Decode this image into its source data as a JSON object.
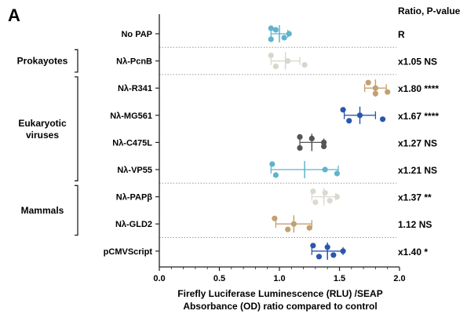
{
  "chart_data": {
    "type": "scatter",
    "panel_label": "A",
    "right_header": "Ratio, P-value",
    "xlabel_lines": [
      "Firefly Luciferase Luminescence (RLU) /SEAP",
      "Absorbance (OD) ratio compared to control"
    ],
    "xlim": [
      0.0,
      2.0
    ],
    "xticks": [
      "0.0",
      "0.5",
      "1.0",
      "1.5",
      "2.0"
    ],
    "reference_line_x": 1.0,
    "groups": [
      {
        "label": "Prokayotes",
        "rows": [
          1
        ]
      },
      {
        "label_lines": [
          "Eukaryotic",
          "viruses"
        ],
        "rows": [
          2,
          3,
          4,
          5
        ]
      },
      {
        "label": "Mammals",
        "rows": [
          6,
          7
        ]
      }
    ],
    "separators_after_rows": [
      0,
      1,
      5,
      7
    ],
    "rows": [
      {
        "name": "No PAP",
        "stat": "R",
        "color": "#5fb3cc",
        "mean": 1.0,
        "sd": 0.07,
        "points": [
          0.93,
          0.93,
          0.97,
          1.04,
          1.08
        ]
      },
      {
        "name": "Nλ-PcnB",
        "stat": "x1.05 NS",
        "color": "#d9d6cc",
        "mean": 1.05,
        "sd": 0.12,
        "points": [
          0.93,
          0.97,
          1.07,
          1.21
        ]
      },
      {
        "name": "Nλ-R341",
        "stat": "x1.80 ****",
        "color": "#c4a071",
        "mean": 1.8,
        "sd": 0.09,
        "points": [
          1.74,
          1.8,
          1.8,
          1.9
        ]
      },
      {
        "name": "Nλ-MG561",
        "stat": "x1.67 ****",
        "color": "#2a56ad",
        "mean": 1.67,
        "sd": 0.13,
        "points": [
          1.53,
          1.58,
          1.67,
          1.86
        ]
      },
      {
        "name": "Nλ-C475L",
        "stat": "x1.27 NS",
        "color": "#555555",
        "mean": 1.27,
        "sd": 0.1,
        "points": [
          1.17,
          1.17,
          1.27,
          1.37,
          1.37
        ]
      },
      {
        "name": "Nλ-VP55",
        "stat": "x1.21 NS",
        "color": "#5fb3cc",
        "mean": 1.21,
        "sd": 0.28,
        "points": [
          0.94,
          0.97,
          1.38,
          1.48
        ]
      },
      {
        "name": "Nλ-PAPβ",
        "stat": "x1.37 **",
        "color": "#dcd9d0",
        "mean": 1.37,
        "sd": 0.1,
        "points": [
          1.28,
          1.3,
          1.38,
          1.42,
          1.48
        ]
      },
      {
        "name": "Nλ-GLD2",
        "stat": "1.12 NS",
        "color": "#c4a071",
        "mean": 1.12,
        "sd": 0.15,
        "points": [
          0.96,
          1.07,
          1.12,
          1.25
        ]
      },
      {
        "name": "pCMVScript",
        "stat": "x1.40 *",
        "color": "#2a56ad",
        "mean": 1.4,
        "sd": 0.13,
        "points": [
          1.28,
          1.33,
          1.4,
          1.45,
          1.53
        ]
      }
    ]
  }
}
